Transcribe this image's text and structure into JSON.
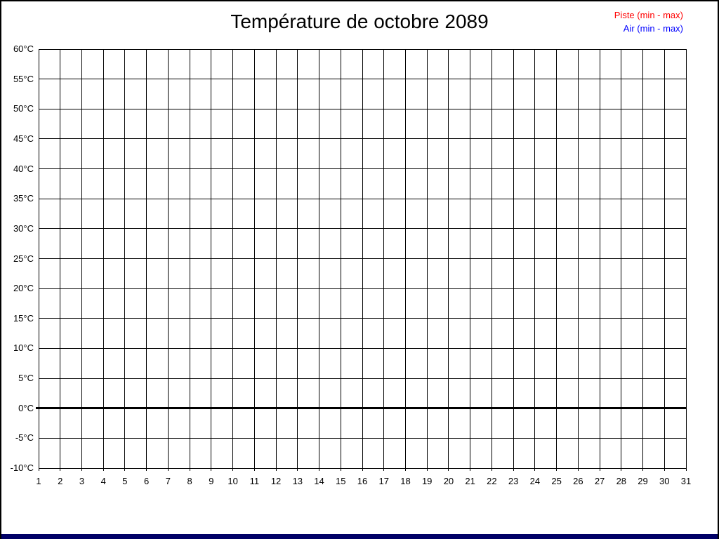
{
  "chart": {
    "title": "Température de octobre 2089",
    "legend": [
      {
        "label": "Piste (min - max)",
        "color": "#ff0000"
      },
      {
        "label": "Air (min - max)",
        "color": "#0000ff"
      }
    ],
    "colors": {
      "grid": "#000000",
      "zero_line": "#000000",
      "background": "#ffffff",
      "frame_border": "#000000",
      "bottom_bar": "#000066"
    }
  },
  "chart_data": {
    "type": "line",
    "title": "Température de octobre 2089",
    "xlabel": "",
    "ylabel": "",
    "xlim": [
      1,
      31
    ],
    "ylim": [
      -10,
      60
    ],
    "grid": true,
    "legend_position": "top-right",
    "zero_line": 0,
    "y_ticks": [
      {
        "value": 60,
        "label": "60°C"
      },
      {
        "value": 55,
        "label": "55°C"
      },
      {
        "value": 50,
        "label": "50°C"
      },
      {
        "value": 45,
        "label": "45°C"
      },
      {
        "value": 40,
        "label": "40°C"
      },
      {
        "value": 35,
        "label": "35°C"
      },
      {
        "value": 30,
        "label": "30°C"
      },
      {
        "value": 25,
        "label": "25°C"
      },
      {
        "value": 20,
        "label": "20°C"
      },
      {
        "value": 15,
        "label": "15°C"
      },
      {
        "value": 10,
        "label": "10°C"
      },
      {
        "value": 5,
        "label": "5°C"
      },
      {
        "value": 0,
        "label": "0°C"
      },
      {
        "value": -5,
        "label": "-5°C"
      },
      {
        "value": -10,
        "label": "-10°C"
      }
    ],
    "x_ticks": [
      1,
      2,
      3,
      4,
      5,
      6,
      7,
      8,
      9,
      10,
      11,
      12,
      13,
      14,
      15,
      16,
      17,
      18,
      19,
      20,
      21,
      22,
      23,
      24,
      25,
      26,
      27,
      28,
      29,
      30,
      31
    ],
    "series": [
      {
        "name": "Piste (min - max)",
        "color": "#ff0000",
        "values": []
      },
      {
        "name": "Air (min - max)",
        "color": "#0000ff",
        "values": []
      }
    ]
  }
}
